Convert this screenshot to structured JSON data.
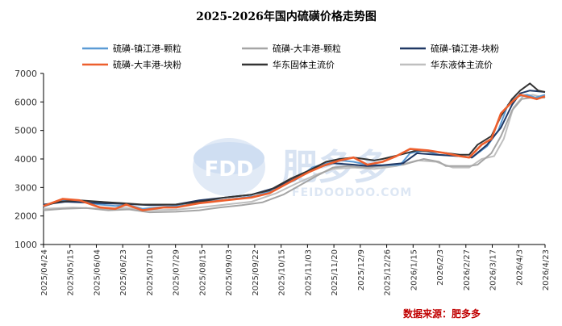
{
  "chart_data": {
    "type": "line",
    "title": "2025-2026年国内硫磺价格走势图",
    "source": "数据来源：肥多多",
    "watermark": {
      "logo_text": "FDD",
      "brand": "肥多多",
      "url": "FEIDOODOO.COM"
    },
    "ylim": [
      1000,
      7000
    ],
    "yticks": [
      1000,
      2000,
      3000,
      4000,
      5000,
      6000,
      7000
    ],
    "xlim": [
      "2025-04-24",
      "2026-04-23"
    ],
    "xticks": [
      "2025/04/24",
      "2025/05/15",
      "2025/06/04",
      "2025/06/23",
      "2025/07/10",
      "2025/07/29",
      "2025/08/15",
      "2025/09/03",
      "2025/09/22",
      "2025/10/15",
      "2025/11/03",
      "2025/11/20",
      "2025/12/9",
      "2025/12/26",
      "2026/1/15",
      "2026/2/3",
      "2026/2/27",
      "2026/3/17",
      "2026/4/3",
      "2026/4/23"
    ],
    "legend_position": "top",
    "series": [
      {
        "name": "硫磺-镇江港-颗粒",
        "color": "#5b9bd5",
        "width": 2,
        "points": [
          [
            "2025-04-24",
            2330
          ],
          [
            "2025-05-01",
            2450
          ],
          [
            "2025-05-08",
            2550
          ],
          [
            "2025-05-20",
            2500
          ],
          [
            "2025-06-04",
            2400
          ],
          [
            "2025-06-15",
            2350
          ],
          [
            "2025-06-25",
            2380
          ],
          [
            "2025-07-05",
            2250
          ],
          [
            "2025-07-20",
            2320
          ],
          [
            "2025-08-05",
            2380
          ],
          [
            "2025-08-20",
            2500
          ],
          [
            "2025-09-05",
            2580
          ],
          [
            "2025-09-25",
            2700
          ],
          [
            "2025-10-10",
            2950
          ],
          [
            "2025-10-25",
            3300
          ],
          [
            "2025-11-05",
            3700
          ],
          [
            "2025-11-15",
            3850
          ],
          [
            "2025-11-25",
            3950
          ],
          [
            "2025-12-05",
            3900
          ],
          [
            "2025-12-15",
            3800
          ],
          [
            "2025-12-26",
            3780
          ],
          [
            "2026-01-08",
            3800
          ],
          [
            "2026-01-15",
            4200
          ],
          [
            "2026-01-25",
            4300
          ],
          [
            "2026-02-05",
            4150
          ],
          [
            "2026-02-20",
            4100
          ],
          [
            "2026-03-01",
            4050
          ],
          [
            "2026-03-12",
            4450
          ],
          [
            "2026-03-20",
            5000
          ],
          [
            "2026-03-27",
            5900
          ],
          [
            "2026-04-03",
            6200
          ],
          [
            "2026-04-10",
            6250
          ],
          [
            "2026-04-16",
            6150
          ],
          [
            "2026-04-23",
            6250
          ]
        ]
      },
      {
        "name": "硫磺-大丰港-颗粒",
        "color": "#a5a5a5",
        "width": 2,
        "points": [
          [
            "2025-04-24",
            2200
          ],
          [
            "2025-05-08",
            2250
          ],
          [
            "2025-05-25",
            2280
          ],
          [
            "2025-06-10",
            2200
          ],
          [
            "2025-06-25",
            2230
          ],
          [
            "2025-07-10",
            2130
          ],
          [
            "2025-07-29",
            2150
          ],
          [
            "2025-08-15",
            2200
          ],
          [
            "2025-08-30",
            2300
          ],
          [
            "2025-09-15",
            2380
          ],
          [
            "2025-09-30",
            2480
          ],
          [
            "2025-10-15",
            2750
          ],
          [
            "2025-10-28",
            3100
          ],
          [
            "2025-11-08",
            3400
          ],
          [
            "2025-11-20",
            3700
          ],
          [
            "2025-12-01",
            3750
          ],
          [
            "2025-12-15",
            3700
          ],
          [
            "2025-12-26",
            3750
          ],
          [
            "2026-01-10",
            3800
          ],
          [
            "2026-01-25",
            4000
          ],
          [
            "2026-02-05",
            3900
          ],
          [
            "2026-02-10",
            3750
          ],
          [
            "2026-02-27",
            3750
          ],
          [
            "2026-03-05",
            3800
          ],
          [
            "2026-03-15",
            4200
          ],
          [
            "2026-03-22",
            4800
          ],
          [
            "2026-03-30",
            5700
          ],
          [
            "2026-04-06",
            6100
          ],
          [
            "2026-04-13",
            6150
          ],
          [
            "2026-04-23",
            6150
          ]
        ]
      },
      {
        "name": "硫磺-镇江港-块粉",
        "color": "#203864",
        "width": 2,
        "points": [
          [
            "2025-04-24",
            2400
          ],
          [
            "2025-05-10",
            2500
          ],
          [
            "2025-06-04",
            2450
          ],
          [
            "2025-06-23",
            2420
          ],
          [
            "2025-07-10",
            2380
          ],
          [
            "2025-07-29",
            2400
          ],
          [
            "2025-08-15",
            2550
          ],
          [
            "2025-09-03",
            2650
          ],
          [
            "2025-09-22",
            2750
          ],
          [
            "2025-10-10",
            3000
          ],
          [
            "2025-10-25",
            3350
          ],
          [
            "2025-11-05",
            3650
          ],
          [
            "2025-11-20",
            3850
          ],
          [
            "2025-12-05",
            3800
          ],
          [
            "2025-12-15",
            3750
          ],
          [
            "2025-12-26",
            3780
          ],
          [
            "2026-01-10",
            3850
          ],
          [
            "2026-01-20",
            4200
          ],
          [
            "2026-02-03",
            4150
          ],
          [
            "2026-02-20",
            4100
          ],
          [
            "2026-03-01",
            4050
          ],
          [
            "2026-03-12",
            4500
          ],
          [
            "2026-03-22",
            5100
          ],
          [
            "2026-03-30",
            5900
          ],
          [
            "2026-04-05",
            6300
          ],
          [
            "2026-04-12",
            6400
          ],
          [
            "2026-04-23",
            6350
          ]
        ]
      },
      {
        "name": "硫磺-大丰港-块粉",
        "color": "#ed5f2d",
        "width": 2.6,
        "points": [
          [
            "2025-04-24",
            2350
          ],
          [
            "2025-05-08",
            2600
          ],
          [
            "2025-05-20",
            2550
          ],
          [
            "2025-06-04",
            2300
          ],
          [
            "2025-06-15",
            2250
          ],
          [
            "2025-06-23",
            2400
          ],
          [
            "2025-07-05",
            2200
          ],
          [
            "2025-07-20",
            2300
          ],
          [
            "2025-07-29",
            2300
          ],
          [
            "2025-08-15",
            2450
          ],
          [
            "2025-09-03",
            2550
          ],
          [
            "2025-09-22",
            2650
          ],
          [
            "2025-10-05",
            2800
          ],
          [
            "2025-10-20",
            3200
          ],
          [
            "2025-11-03",
            3550
          ],
          [
            "2025-11-15",
            3800
          ],
          [
            "2025-11-25",
            3950
          ],
          [
            "2025-12-05",
            4050
          ],
          [
            "2025-12-15",
            3800
          ],
          [
            "2025-12-26",
            3900
          ],
          [
            "2026-01-05",
            4100
          ],
          [
            "2026-01-15",
            4350
          ],
          [
            "2026-01-28",
            4300
          ],
          [
            "2026-02-10",
            4200
          ],
          [
            "2026-02-20",
            4100
          ],
          [
            "2026-02-27",
            4050
          ],
          [
            "2026-03-08",
            4500
          ],
          [
            "2026-03-15",
            4700
          ],
          [
            "2026-03-22",
            5600
          ],
          [
            "2026-03-30",
            6000
          ],
          [
            "2026-04-05",
            6250
          ],
          [
            "2026-04-13",
            6150
          ],
          [
            "2026-04-17",
            6100
          ],
          [
            "2026-04-23",
            6200
          ]
        ]
      },
      {
        "name": "华东固体主流价",
        "color": "#333333",
        "width": 2,
        "points": [
          [
            "2025-04-24",
            2350
          ],
          [
            "2025-05-05",
            2500
          ],
          [
            "2025-05-20",
            2550
          ],
          [
            "2025-06-04",
            2500
          ],
          [
            "2025-06-20",
            2450
          ],
          [
            "2025-07-05",
            2400
          ],
          [
            "2025-07-29",
            2400
          ],
          [
            "2025-08-15",
            2500
          ],
          [
            "2025-09-03",
            2650
          ],
          [
            "2025-09-22",
            2750
          ],
          [
            "2025-10-05",
            2900
          ],
          [
            "2025-10-20",
            3300
          ],
          [
            "2025-11-03",
            3600
          ],
          [
            "2025-11-15",
            3900
          ],
          [
            "2025-11-25",
            4000
          ],
          [
            "2025-12-05",
            4050
          ],
          [
            "2025-12-20",
            3950
          ],
          [
            "2025-12-26",
            4000
          ],
          [
            "2026-01-08",
            4150
          ],
          [
            "2026-01-20",
            4300
          ],
          [
            "2026-02-03",
            4250
          ],
          [
            "2026-02-20",
            4150
          ],
          [
            "2026-02-27",
            4150
          ],
          [
            "2026-03-05",
            4500
          ],
          [
            "2026-03-15",
            4800
          ],
          [
            "2026-03-22",
            5500
          ],
          [
            "2026-03-30",
            6100
          ],
          [
            "2026-04-05",
            6400
          ],
          [
            "2026-04-12",
            6650
          ],
          [
            "2026-04-18",
            6400
          ],
          [
            "2026-04-23",
            6350
          ]
        ]
      },
      {
        "name": "华东液体主流价",
        "color": "#bfbfbf",
        "width": 2,
        "points": [
          [
            "2025-04-24",
            2250
          ],
          [
            "2025-05-15",
            2300
          ],
          [
            "2025-06-04",
            2250
          ],
          [
            "2025-06-23",
            2280
          ],
          [
            "2025-07-10",
            2200
          ],
          [
            "2025-07-29",
            2220
          ],
          [
            "2025-08-15",
            2300
          ],
          [
            "2025-09-03",
            2400
          ],
          [
            "2025-09-22",
            2500
          ],
          [
            "2025-10-10",
            2800
          ],
          [
            "2025-10-25",
            3150
          ],
          [
            "2025-11-08",
            3450
          ],
          [
            "2025-11-20",
            3650
          ],
          [
            "2025-12-05",
            3700
          ],
          [
            "2025-12-20",
            3650
          ],
          [
            "2026-01-05",
            3750
          ],
          [
            "2026-01-20",
            3950
          ],
          [
            "2026-02-03",
            3900
          ],
          [
            "2026-02-15",
            3700
          ],
          [
            "2026-02-27",
            3700
          ],
          [
            "2026-03-08",
            4000
          ],
          [
            "2026-03-17",
            4100
          ],
          [
            "2026-03-24",
            4700
          ],
          [
            "2026-03-31",
            5800
          ],
          [
            "2026-04-07",
            6200
          ],
          [
            "2026-04-14",
            6250
          ],
          [
            "2026-04-23",
            6150
          ]
        ]
      }
    ]
  }
}
